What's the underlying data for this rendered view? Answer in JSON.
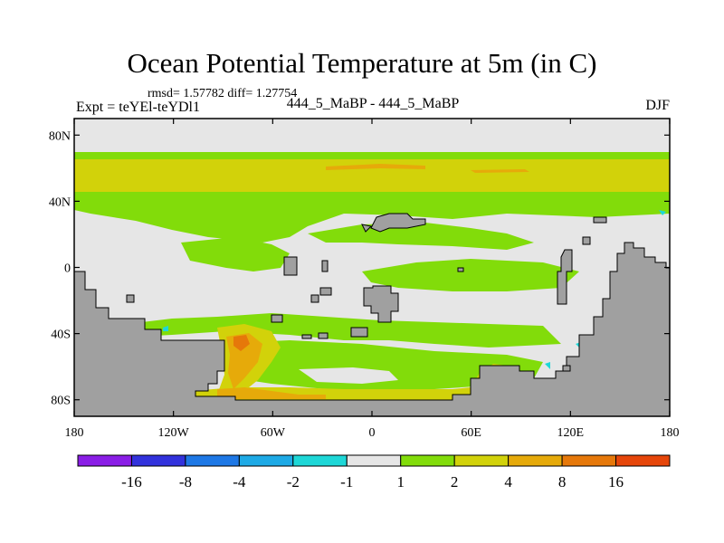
{
  "title": "Ocean Potential Temperature at 5m (in C)",
  "stats_text": "rmsd= 1.57782 diff= 1.27754",
  "experiment_text": "Expt = teYEl-teYDl1",
  "experiment_label": "444_5_MaBP - 444_5_MaBP",
  "season": "DJF",
  "chart_data": {
    "type": "heatmap",
    "variable": "Ocean Potential Temperature at 5m",
    "units": "C",
    "xrange": [
      -180,
      180
    ],
    "yrange": [
      -90,
      90
    ],
    "x_ticks": [
      {
        "value": -180,
        "label": "180"
      },
      {
        "value": -120,
        "label": "120W"
      },
      {
        "value": -60,
        "label": "60W"
      },
      {
        "value": 0,
        "label": "0"
      },
      {
        "value": 60,
        "label": "60E"
      },
      {
        "value": 120,
        "label": "120E"
      },
      {
        "value": 180,
        "label": "180"
      }
    ],
    "y_ticks": [
      {
        "value": 80,
        "label": "80N"
      },
      {
        "value": 40,
        "label": "40N"
      },
      {
        "value": 0,
        "label": "0"
      },
      {
        "value": -40,
        "label": "40S"
      },
      {
        "value": -80,
        "label": "80S"
      }
    ],
    "colorbar": {
      "colors": [
        "#8a1ee6",
        "#3232dc",
        "#1e78e6",
        "#1eaae6",
        "#1ed7d7",
        "#e6e6e6",
        "#82dc0a",
        "#d2d20a",
        "#e6aa0a",
        "#e6780a",
        "#e6460a"
      ],
      "levels": [
        "-16",
        "-8",
        "-4",
        "-2",
        "-1",
        "1",
        "2",
        "4",
        "8",
        "16"
      ]
    },
    "colors": {
      "land": "#a0a0a0",
      "near_zero": "#e6e6e6",
      "band_1_2": "#82dc0a",
      "band_2_4": "#d2d20a",
      "band_4_8": "#e6aa0a",
      "band_8_16": "#e6780a",
      "band_16_plus": "#e6460a",
      "band_neg_1_2": "#1ed7d7"
    }
  }
}
